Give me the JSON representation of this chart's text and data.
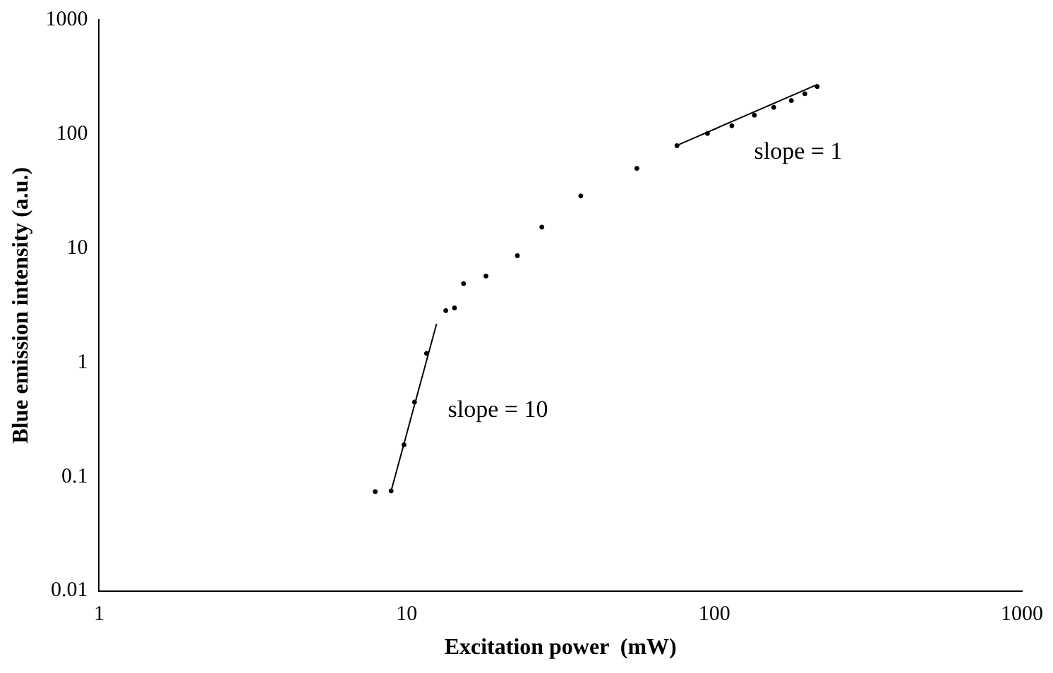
{
  "chart_data": {
    "type": "scatter",
    "xlabel": "Excitation power  (mW)",
    "ylabel": "Blue emission intensity (a.u.)",
    "log": "xy",
    "xlim": [
      1,
      1000
    ],
    "xticks": [
      1,
      10,
      100,
      1000
    ],
    "ylim": [
      0.01,
      1000
    ],
    "yticks": [
      0.01,
      0.1,
      1,
      10,
      100,
      1000
    ],
    "grid": false,
    "legend": false,
    "marker": "circle",
    "series": [
      {
        "color": "#000000",
        "x": [
          7.9,
          8.9,
          9.8,
          10.6,
          11.6,
          13.4,
          14.3,
          15.3,
          18.1,
          22.9,
          27.5,
          36.8,
          56,
          75.6,
          95,
          114,
          135,
          156,
          178,
          197,
          216
        ],
        "values": [
          0.074,
          0.075,
          0.19,
          0.45,
          1.2,
          2.84,
          3.0,
          4.9,
          5.7,
          8.6,
          15.3,
          28.7,
          50,
          79,
          101,
          118,
          146,
          171,
          196,
          225,
          260
        ]
      },
      {
        "type": "line",
        "color": "#000000",
        "marker": "none",
        "x": [
          8.9,
          12.5
        ],
        "values": [
          0.075,
          2.17
        ]
      },
      {
        "type": "line",
        "color": "#000000",
        "marker": "none",
        "x": [
          75.6,
          216
        ],
        "values": [
          79.4,
          271
        ]
      }
    ],
    "annotations": [
      "slope = 10",
      "slope = 1"
    ]
  }
}
